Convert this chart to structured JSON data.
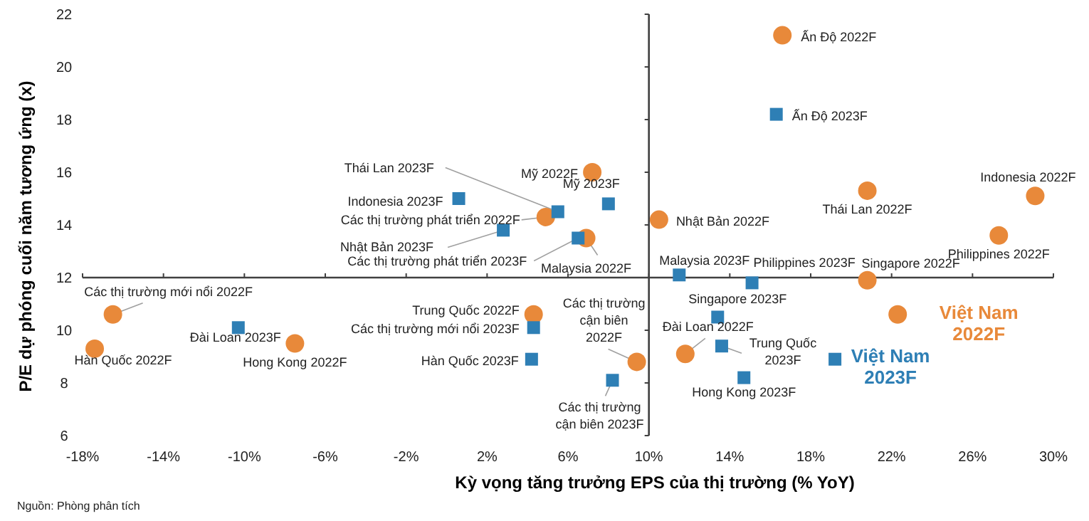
{
  "chart_data": {
    "type": "scatter",
    "xlabel": "Kỳ vọng tăng trưởng EPS của thị trường (% YoY)",
    "ylabel": "P/E dự phóng cuối năm tương ứng (x)",
    "xlim": [
      -18,
      30
    ],
    "ylim": [
      6,
      22
    ],
    "xticks": [
      {
        "value": -18,
        "label": "-18%"
      },
      {
        "value": -14,
        "label": "-14%"
      },
      {
        "value": -10,
        "label": "-10%"
      },
      {
        "value": -6,
        "label": "-6%"
      },
      {
        "value": -2,
        "label": "-2%"
      },
      {
        "value": 2,
        "label": "2%"
      },
      {
        "value": 6,
        "label": "6%"
      },
      {
        "value": 10,
        "label": "10%"
      },
      {
        "value": 14,
        "label": "14%"
      },
      {
        "value": 18,
        "label": "18%"
      },
      {
        "value": 22,
        "label": "22%"
      },
      {
        "value": 26,
        "label": "26%"
      },
      {
        "value": 30,
        "label": "30%"
      }
    ],
    "yticks": [
      6,
      8,
      10,
      12,
      14,
      16,
      18,
      20,
      22
    ],
    "grid": false,
    "ref_lines": [
      {
        "axis": "x",
        "value": 10
      },
      {
        "axis": "y",
        "value": 12
      }
    ],
    "series": [
      {
        "color": "#e8893a",
        "marker": "circle",
        "x": [
          16.6,
          7.2,
          4.9,
          6.9,
          10.5,
          20.8,
          29.1,
          27.3,
          20.8,
          22.3,
          11.8,
          9.4,
          4.3,
          -16.5,
          -17.4,
          -7.5
        ],
        "values": [
          21.2,
          16.0,
          14.3,
          13.5,
          14.2,
          15.3,
          15.1,
          13.6,
          11.9,
          10.6,
          9.1,
          8.8,
          10.6,
          10.6,
          9.3,
          9.5
        ]
      },
      {
        "color": "#2e7fb5",
        "marker": "square",
        "x": [
          16.3,
          8.0,
          5.5,
          0.6,
          2.8,
          6.5,
          11.5,
          15.1,
          13.4,
          13.6,
          14.7,
          19.2,
          8.2,
          4.3,
          4.2,
          -10.3
        ],
        "values": [
          18.2,
          14.8,
          14.5,
          15.0,
          13.8,
          13.5,
          12.1,
          11.8,
          10.5,
          9.4,
          8.2,
          8.9,
          8.1,
          10.1,
          8.9,
          10.1
        ]
      }
    ],
    "annotations": [
      {
        "text": "Ấn Độ 2022F",
        "x": 16.6,
        "y": 21.2
      },
      {
        "text": "Mỹ 2022F",
        "x": 7.2,
        "y": 16.0
      },
      {
        "text": "Các thị trường phát triển 2022F",
        "x": 4.9,
        "y": 14.3
      },
      {
        "text": "Malaysia 2022F",
        "x": 6.9,
        "y": 13.5
      },
      {
        "text": "Nhật Bản 2022F",
        "x": 10.5,
        "y": 14.2
      },
      {
        "text": "Thái Lan 2022F",
        "x": 20.8,
        "y": 15.3
      },
      {
        "text": "Indonesia 2022F",
        "x": 29.1,
        "y": 15.1
      },
      {
        "text": "Philippines 2022F",
        "x": 27.3,
        "y": 13.6
      },
      {
        "text": "Singapore 2022F",
        "x": 20.8,
        "y": 11.9
      },
      {
        "text": "Việt Nam 2022F",
        "x": 22.3,
        "y": 10.6
      },
      {
        "text": "Đài Loan 2022F",
        "x": 11.8,
        "y": 9.1
      },
      {
        "text": "Các thị trường cận biên 2022F",
        "x": 9.4,
        "y": 8.8
      },
      {
        "text": "Trung Quốc 2022F",
        "x": 4.3,
        "y": 10.6
      },
      {
        "text": "Các thị trường mới nổi 2022F",
        "x": -16.5,
        "y": 10.6
      },
      {
        "text": "Hàn Quốc 2022F",
        "x": -17.4,
        "y": 9.3
      },
      {
        "text": "Hong Kong 2022F",
        "x": -7.5,
        "y": 9.5
      },
      {
        "text": "Ấn Độ 2023F",
        "x": 16.3,
        "y": 18.2
      },
      {
        "text": "Mỹ 2023F",
        "x": 8.0,
        "y": 14.8
      },
      {
        "text": "Thái Lan 2023F",
        "x": 5.5,
        "y": 14.5
      },
      {
        "text": "Indonesia 2023F",
        "x": 0.6,
        "y": 15.0
      },
      {
        "text": "Nhật Bản 2023F",
        "x": 2.8,
        "y": 13.8
      },
      {
        "text": "Các thị trường phát triển 2023F",
        "x": 6.5,
        "y": 13.5
      },
      {
        "text": "Malaysia 2023F",
        "x": 11.5,
        "y": 12.1
      },
      {
        "text": "Philippines 2023F",
        "x": 15.1,
        "y": 11.8
      },
      {
        "text": "Singapore 2023F",
        "x": 13.4,
        "y": 10.5
      },
      {
        "text": "Trung Quốc 2023F",
        "x": 13.6,
        "y": 9.4
      },
      {
        "text": "Hong Kong 2023F",
        "x": 14.7,
        "y": 8.2
      },
      {
        "text": "Việt Nam 2023F",
        "x": 19.2,
        "y": 8.9
      },
      {
        "text": "Các thị trường cận biên 2023F",
        "x": 8.2,
        "y": 8.1
      },
      {
        "text": "Các thị trường mới nổi 2023F",
        "x": 4.3,
        "y": 10.1
      },
      {
        "text": "Hàn Quốc 2023F",
        "x": 4.2,
        "y": 8.9
      },
      {
        "text": "Đài Loan 2023F",
        "x": -10.3,
        "y": 10.1
      },
      "Nguồn: Phòng phân tích"
    ]
  }
}
